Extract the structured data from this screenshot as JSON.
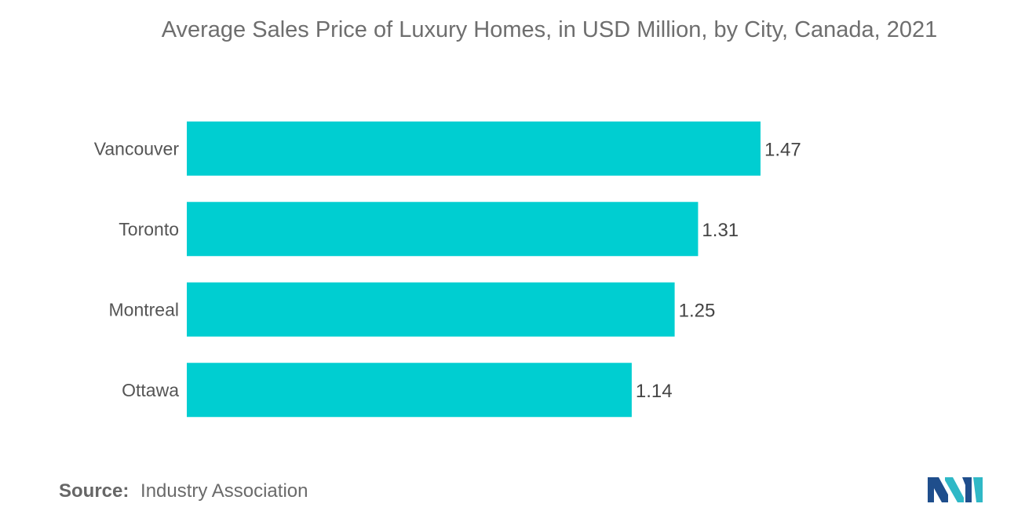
{
  "chart_data": {
    "type": "bar",
    "orientation": "horizontal",
    "title": "Average Sales Price of Luxury Homes, in USD Million, by City, Canada, 2021",
    "categories": [
      "Vancouver",
      "Toronto",
      "Montreal",
      "Ottawa"
    ],
    "values": [
      1.47,
      1.31,
      1.25,
      1.14
    ],
    "value_labels": [
      "1.47",
      "1.31",
      "1.25",
      "1.14"
    ],
    "xlim": [
      0,
      1.47
    ],
    "grid": false,
    "legend": "none",
    "bar_color": "#00ced1"
  },
  "source": {
    "label": "Source:",
    "text": "Industry Association"
  },
  "logo": {
    "icon": "mordor-intelligence-logo-icon",
    "colors": [
      "#1f4e8c",
      "#2fb8c6"
    ]
  }
}
